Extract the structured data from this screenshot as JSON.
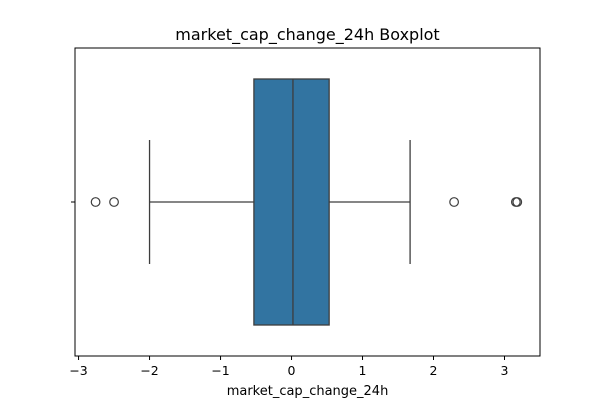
{
  "chart_data": {
    "type": "boxplot",
    "title": "market_cap_change_24h Boxplot",
    "xlabel": "market_cap_change_24h",
    "ylabel": "",
    "orientation": "horizontal",
    "xlim": [
      -3.05,
      3.5
    ],
    "xticks": [
      -3,
      -2,
      -1,
      0,
      1,
      2,
      3
    ],
    "xtick_labels": [
      "−3",
      "−2",
      "−1",
      "0",
      "1",
      "2",
      "3"
    ],
    "grid": false,
    "box_color": "#3274a1",
    "line_color": "#3d3d3d",
    "box": {
      "whisker_low": -2.0,
      "q1": -0.53,
      "median": 0.02,
      "q3": 0.53,
      "whisker_high": 1.67
    },
    "outliers": [
      -2.76,
      -2.5,
      2.29,
      3.16,
      3.18
    ]
  }
}
